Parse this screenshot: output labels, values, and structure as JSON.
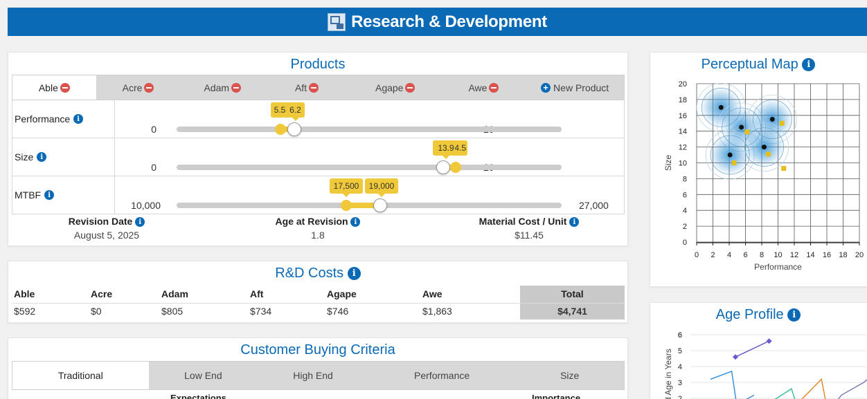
{
  "header": {
    "title": "Research & Development"
  },
  "products": {
    "title": "Products",
    "tabs": [
      {
        "label": "Able",
        "active": true
      },
      {
        "label": "Acre"
      },
      {
        "label": "Adam"
      },
      {
        "label": "Aft"
      },
      {
        "label": "Agape"
      },
      {
        "label": "Awe"
      }
    ],
    "new_product": "New Product",
    "sliders": {
      "performance": {
        "label": "Performance",
        "min": "0",
        "max": "20",
        "current": "5.5",
        "target": "6.2",
        "current_value": 5.5,
        "target_value": 6.2,
        "range": [
          0,
          20
        ]
      },
      "size": {
        "label": "Size",
        "min": "0",
        "max": "20",
        "current": "14.5",
        "target": "13.9",
        "current_value": 14.5,
        "target_value": 13.9,
        "range": [
          0,
          20
        ]
      },
      "mtbf": {
        "label": "MTBF",
        "min": "10,000",
        "max": "27,000",
        "current": "17,500",
        "target": "19,000",
        "current_value": 17500,
        "target_value": 19000,
        "range": [
          10000,
          27000
        ]
      }
    },
    "stats": {
      "revision_date_label": "Revision Date",
      "revision_date": "August 5, 2025",
      "age_label": "Age at Revision",
      "age": "1.8",
      "cost_label": "Material Cost / Unit",
      "cost": "$11.45"
    }
  },
  "rd_costs": {
    "title": "R&D Costs",
    "columns": [
      "Able",
      "Acre",
      "Adam",
      "Aft",
      "Agape",
      "Awe",
      "Total"
    ],
    "values": [
      "$592",
      "$0",
      "$805",
      "$734",
      "$746",
      "$1,863",
      "$4,741"
    ]
  },
  "cbc": {
    "title": "Customer Buying Criteria",
    "tabs": [
      "Traditional",
      "Low End",
      "High End",
      "Performance",
      "Size"
    ],
    "col_expectations": "Expectations",
    "col_importance": "Importance"
  },
  "perceptual_map": {
    "title": "Perceptual Map",
    "chart_data": {
      "type": "scatter",
      "xlabel": "Performance",
      "ylabel": "Size",
      "xlim": [
        0,
        20
      ],
      "ylim": [
        0,
        20
      ],
      "xticks": [
        "0",
        "2",
        "4",
        "6",
        "8",
        "10",
        "12",
        "14",
        "16",
        "18",
        "20"
      ],
      "yticks": [
        "0",
        "2",
        "4",
        "6",
        "8",
        "10",
        "12",
        "14",
        "16",
        "18",
        "20"
      ],
      "segment_centers": [
        [
          3,
          17
        ],
        [
          5.5,
          14.5
        ],
        [
          9.3,
          15.5
        ],
        [
          4.1,
          11
        ],
        [
          8.3,
          12
        ]
      ],
      "black_points": [
        [
          3,
          17
        ],
        [
          5.5,
          14.5
        ],
        [
          9.3,
          15.5
        ],
        [
          4.1,
          11
        ],
        [
          8.3,
          12
        ]
      ],
      "yellow_points": [
        [
          6.2,
          13.9
        ],
        [
          10.5,
          15
        ],
        [
          4.6,
          10
        ],
        [
          8.8,
          11.1
        ],
        [
          10.7,
          9.3
        ]
      ],
      "colors": {
        "segment": "#2f8fd3",
        "black": "#111111",
        "yellow": "#e5bd1c"
      }
    }
  },
  "age_profile": {
    "title": "Age Profile",
    "chart_data": {
      "type": "line",
      "ylabel": "red Age in Years",
      "yticks": [
        "2",
        "3",
        "4",
        "5",
        "6"
      ],
      "ylim": [
        1.5,
        6.3
      ],
      "series": [
        {
          "color": "#6a5acd",
          "points": [
            [
              0.35,
              4.6
            ],
            [
              0.62,
              5.6
            ]
          ]
        },
        {
          "color": "#3a8fd6",
          "points": [
            [
              0.15,
              3.2
            ],
            [
              0.32,
              3.7
            ],
            [
              0.36,
              1.6
            ]
          ]
        },
        {
          "color": "#3a8fd6",
          "points": [
            [
              0.36,
              1.6
            ],
            [
              0.5,
              2.2
            ]
          ]
        },
        {
          "color": "#3fbf9f",
          "points": [
            [
              0.58,
              1.5
            ],
            [
              0.8,
              2.6
            ],
            [
              0.84,
              1.6
            ]
          ]
        },
        {
          "color": "#e08a2c",
          "points": [
            [
              0.84,
              1.6
            ],
            [
              1.04,
              3.2
            ],
            [
              1.08,
              1.6
            ]
          ]
        },
        {
          "color": "#7a7fb8",
          "points": [
            [
              1.12,
              1.4
            ],
            [
              1.2,
              2.2
            ],
            [
              1.38,
              3.0
            ],
            [
              1.44,
              3.4
            ]
          ]
        }
      ]
    }
  }
}
